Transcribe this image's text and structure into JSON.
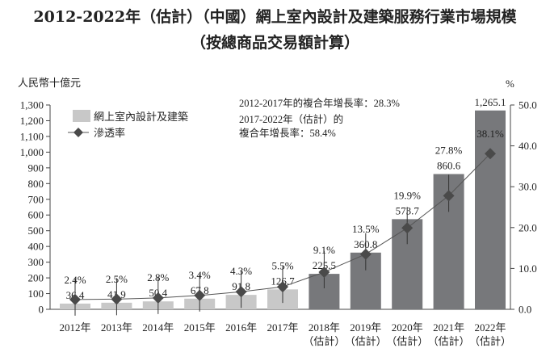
{
  "title_line1": "2012-2022年（估計）（中國）網上室內設計及建築服務行業市場規模",
  "title_line2": "（按總商品交易額計算）",
  "chart_data": {
    "type": "bar",
    "categories": [
      "2012年",
      "2013年",
      "2014年",
      "2015年",
      "2016年",
      "2017年",
      "2018年\n（估計）",
      "2019年\n（估計）",
      "2020年\n（估計）",
      "2021年\n（估計）",
      "2022年\n（估計）"
    ],
    "ylabel_left": "人民幣十億元",
    "ylabel_right": "%",
    "ylim_left": [
      0,
      1300
    ],
    "yticks_left": [
      "0",
      "100",
      "200",
      "300",
      "400",
      "500",
      "600",
      "700",
      "800",
      "900",
      "1,000",
      "1,100",
      "1,200",
      "1,300"
    ],
    "ylim_right": [
      0,
      50
    ],
    "yticks_right": [
      "0.0",
      "10.0",
      "20.0",
      "30.0",
      "40.0",
      "50.0"
    ],
    "series": [
      {
        "name": "網上室內設計及建築",
        "type": "bar",
        "values": [
          36.4,
          41.9,
          50.4,
          67.8,
          91.8,
          126.7,
          225.5,
          360.8,
          573.7,
          860.6,
          1265.1
        ],
        "labels": [
          "36.4",
          "41.9",
          "50.4",
          "67.8",
          "91.8",
          "126.7",
          "225.5",
          "360.8",
          "573.7",
          "860.6",
          "1,265.1"
        ]
      },
      {
        "name": "滲透率",
        "type": "line",
        "axis": "right",
        "values": [
          2.4,
          2.5,
          2.8,
          3.4,
          4.3,
          5.5,
          9.1,
          13.5,
          19.9,
          27.8,
          38.1
        ],
        "labels": [
          "2.4%",
          "2.5%",
          "2.8%",
          "3.4%",
          "4.3%",
          "5.5%",
          "9.1%",
          "13.5%",
          "19.9%",
          "27.8%",
          "38.1%"
        ]
      }
    ],
    "annotations": [
      "2012-2017年的複合年增長率：28.3%",
      "2017-2022年（估計）的",
      "複合年增長率：58.4%"
    ],
    "legend": "top-left",
    "colors": {
      "actual_bar": "#c8c8c8",
      "estimated_bar": "#77787b",
      "line": "#555555",
      "marker": "#4a4a4a"
    },
    "grid": false
  }
}
